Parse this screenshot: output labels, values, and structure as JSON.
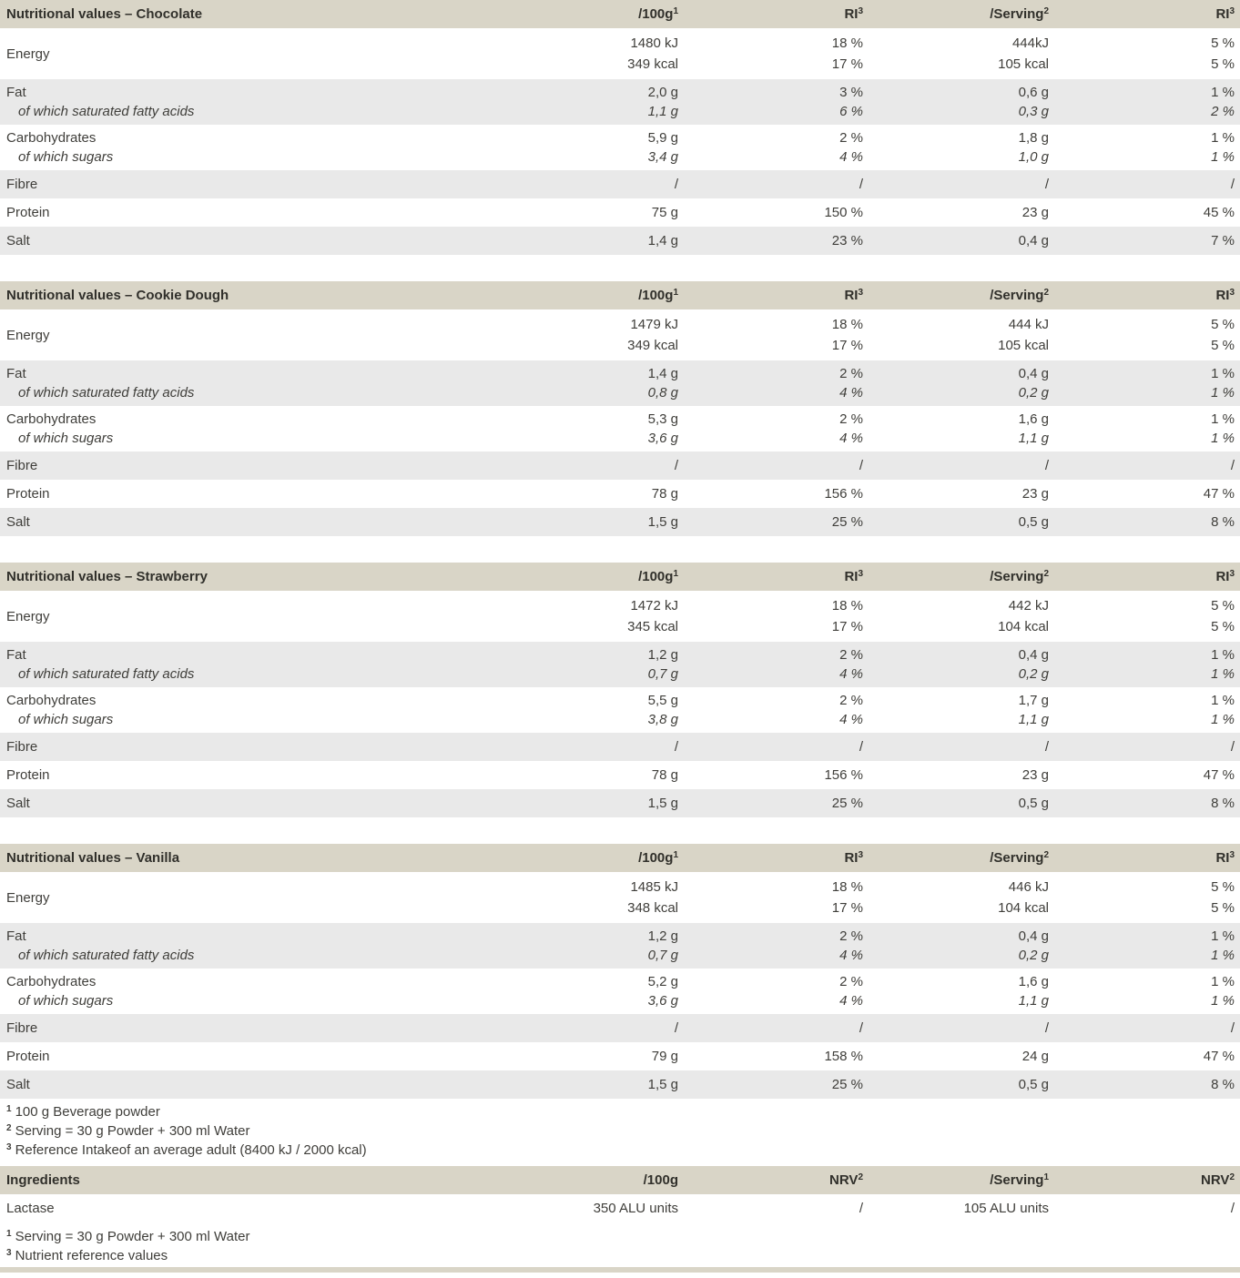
{
  "colors": {
    "header_bg": "#d9d5c7",
    "row_alt_bg": "#e9e9e9",
    "row_bg": "#ffffff",
    "text": "#3f3e3a",
    "header_text": "#31302b"
  },
  "tables": [
    {
      "title": "Nutritional values – Chocolate",
      "columns": [
        {
          "base": "/100g",
          "sup": "1"
        },
        {
          "base": "RI",
          "sup": "3"
        },
        {
          "base": "/Serving",
          "sup": "2"
        },
        {
          "base": "RI",
          "sup": "3"
        }
      ],
      "blocks": [
        {
          "kind": "energy",
          "shade": "white",
          "label": "Energy",
          "lines": [
            [
              "1480 kJ",
              "18 %",
              "444kJ",
              "5 %"
            ],
            [
              "349 kcal",
              "17 %",
              "105 kcal",
              "5 %"
            ]
          ]
        },
        {
          "kind": "pair",
          "shade": "alt",
          "main": {
            "label": "Fat",
            "cells": [
              "2,0 g",
              "3 %",
              "0,6 g",
              "1 %"
            ]
          },
          "sub": {
            "label": "of which saturated fatty acids",
            "cells": [
              "1,1 g",
              "6 %",
              "0,3 g",
              "2 %"
            ]
          }
        },
        {
          "kind": "pair",
          "shade": "white",
          "main": {
            "label": "Carbohydrates",
            "cells": [
              "5,9 g",
              "2 %",
              "1,8 g",
              "1 %"
            ]
          },
          "sub": {
            "label": "of which sugars",
            "cells": [
              "3,4 g",
              "4 %",
              "1,0 g",
              "1 %"
            ]
          }
        },
        {
          "kind": "single",
          "shade": "alt",
          "label": "Fibre",
          "cells": [
            "/",
            "/",
            "/",
            "/"
          ]
        },
        {
          "kind": "single",
          "shade": "white",
          "label": "Protein",
          "cells": [
            "75 g",
            "150 %",
            "23 g",
            "45 %"
          ]
        },
        {
          "kind": "single",
          "shade": "alt",
          "label": "Salt",
          "cells": [
            "1,4 g",
            "23 %",
            "0,4 g",
            "7 %"
          ]
        }
      ]
    },
    {
      "title": "Nutritional values – Cookie Dough",
      "columns": [
        {
          "base": "/100g",
          "sup": "1"
        },
        {
          "base": "RI",
          "sup": "3"
        },
        {
          "base": "/Serving",
          "sup": "2"
        },
        {
          "base": "RI",
          "sup": "3"
        }
      ],
      "blocks": [
        {
          "kind": "energy",
          "shade": "white",
          "label": "Energy",
          "lines": [
            [
              "1479 kJ",
              "18 %",
              "444 kJ",
              "5 %"
            ],
            [
              "349 kcal",
              "17 %",
              "105 kcal",
              "5 %"
            ]
          ]
        },
        {
          "kind": "pair",
          "shade": "alt",
          "main": {
            "label": "Fat",
            "cells": [
              "1,4 g",
              "2 %",
              "0,4 g",
              "1 %"
            ]
          },
          "sub": {
            "label": "of which saturated fatty acids",
            "cells": [
              "0,8 g",
              "4 %",
              "0,2 g",
              "1 %"
            ]
          }
        },
        {
          "kind": "pair",
          "shade": "white",
          "main": {
            "label": "Carbohydrates",
            "cells": [
              "5,3 g",
              "2 %",
              "1,6 g",
              "1 %"
            ]
          },
          "sub": {
            "label": "of which sugars",
            "cells": [
              "3,6 g",
              "4 %",
              "1,1 g",
              "1 %"
            ]
          }
        },
        {
          "kind": "single",
          "shade": "alt",
          "label": "Fibre",
          "cells": [
            "/",
            "/",
            "/",
            "/"
          ]
        },
        {
          "kind": "single",
          "shade": "white",
          "label": "Protein",
          "cells": [
            "78 g",
            "156 %",
            "23 g",
            "47 %"
          ]
        },
        {
          "kind": "single",
          "shade": "alt",
          "label": "Salt",
          "cells": [
            "1,5 g",
            "25 %",
            "0,5 g",
            "8 %"
          ]
        }
      ]
    },
    {
      "title": "Nutritional values – Strawberry",
      "columns": [
        {
          "base": "/100g",
          "sup": "1"
        },
        {
          "base": "RI",
          "sup": "3"
        },
        {
          "base": "/Serving",
          "sup": "2"
        },
        {
          "base": "RI",
          "sup": "3"
        }
      ],
      "blocks": [
        {
          "kind": "energy",
          "shade": "white",
          "label": "Energy",
          "lines": [
            [
              "1472 kJ",
              "18 %",
              "442 kJ",
              "5 %"
            ],
            [
              "345 kcal",
              "17 %",
              "104 kcal",
              "5 %"
            ]
          ]
        },
        {
          "kind": "pair",
          "shade": "alt",
          "main": {
            "label": "Fat",
            "cells": [
              "1,2 g",
              "2 %",
              "0,4 g",
              "1 %"
            ]
          },
          "sub": {
            "label": "of which saturated fatty acids",
            "cells": [
              "0,7 g",
              "4 %",
              "0,2 g",
              "1 %"
            ]
          }
        },
        {
          "kind": "pair",
          "shade": "white",
          "main": {
            "label": "Carbohydrates",
            "cells": [
              "5,5 g",
              "2 %",
              "1,7 g",
              "1 %"
            ]
          },
          "sub": {
            "label": "of which sugars",
            "cells": [
              "3,8 g",
              "4 %",
              "1,1 g",
              "1 %"
            ]
          }
        },
        {
          "kind": "single",
          "shade": "alt",
          "label": "Fibre",
          "cells": [
            "/",
            "/",
            "/",
            "/"
          ]
        },
        {
          "kind": "single",
          "shade": "white",
          "label": "Protein",
          "cells": [
            "78 g",
            "156 %",
            "23 g",
            "47 %"
          ]
        },
        {
          "kind": "single",
          "shade": "alt",
          "label": "Salt",
          "cells": [
            "1,5 g",
            "25 %",
            "0,5 g",
            "8 %"
          ]
        }
      ]
    },
    {
      "title": "Nutritional values – Vanilla",
      "columns": [
        {
          "base": "/100g",
          "sup": "1"
        },
        {
          "base": "RI",
          "sup": "3"
        },
        {
          "base": "/Serving",
          "sup": "2"
        },
        {
          "base": "RI",
          "sup": "3"
        }
      ],
      "blocks": [
        {
          "kind": "energy",
          "shade": "white",
          "label": "Energy",
          "lines": [
            [
              "1485 kJ",
              "18 %",
              "446 kJ",
              "5 %"
            ],
            [
              "348 kcal",
              "17 %",
              "104 kcal",
              "5 %"
            ]
          ]
        },
        {
          "kind": "pair",
          "shade": "alt",
          "main": {
            "label": "Fat",
            "cells": [
              "1,2 g",
              "2 %",
              "0,4 g",
              "1 %"
            ]
          },
          "sub": {
            "label": "of which saturated fatty acids",
            "cells": [
              "0,7 g",
              "4 %",
              "0,2 g",
              "1 %"
            ]
          }
        },
        {
          "kind": "pair",
          "shade": "white",
          "main": {
            "label": "Carbohydrates",
            "cells": [
              "5,2 g",
              "2 %",
              "1,6 g",
              "1 %"
            ]
          },
          "sub": {
            "label": "of which sugars",
            "cells": [
              "3,6 g",
              "4 %",
              "1,1 g",
              "1 %"
            ]
          }
        },
        {
          "kind": "single",
          "shade": "alt",
          "label": "Fibre",
          "cells": [
            "/",
            "/",
            "/",
            "/"
          ]
        },
        {
          "kind": "single",
          "shade": "white",
          "label": "Protein",
          "cells": [
            "79 g",
            "158 %",
            "24 g",
            "47 %"
          ]
        },
        {
          "kind": "single",
          "shade": "alt",
          "label": "Salt",
          "cells": [
            "1,5 g",
            "25 %",
            "0,5 g",
            "8 %"
          ]
        }
      ]
    }
  ],
  "footnotes_nutrition": [
    {
      "sup": "1",
      "text": "100 g Beverage powder"
    },
    {
      "sup": "2",
      "text": "Serving = 30 g Powder + 300 ml Water"
    },
    {
      "sup": "3",
      "text": "Reference Intakeof an average adult (8400 kJ / 2000 kcal)"
    }
  ],
  "ingredients_table": {
    "title": "Ingredients",
    "columns": [
      {
        "base": "/100g",
        "sup": ""
      },
      {
        "base": "NRV",
        "sup": "2"
      },
      {
        "base": "/Serving",
        "sup": "1"
      },
      {
        "base": "NRV",
        "sup": "2"
      }
    ],
    "blocks": [
      {
        "kind": "single",
        "shade": "white",
        "label": "Lactase",
        "cells": [
          "350 ALU units",
          "/",
          "105 ALU units",
          "/"
        ]
      }
    ]
  },
  "footnotes_ingredients": [
    {
      "sup": "1",
      "text": "Serving = 30 g Powder + 300 ml Water"
    },
    {
      "sup": "3",
      "text": "Nutrient reference values"
    }
  ]
}
